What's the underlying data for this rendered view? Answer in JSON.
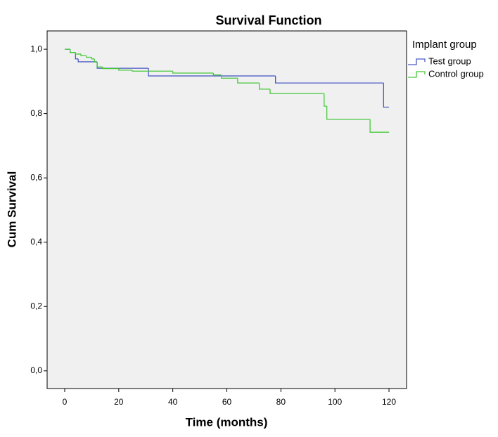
{
  "chart_data": {
    "type": "step",
    "title": "Survival Function",
    "x_label": "Time (months)",
    "y_label": "Cum Survival",
    "legend_title": "Implant group",
    "legend": "right",
    "xlim": [
      -6.5,
      126.5
    ],
    "ylim": [
      -0.055,
      1.057
    ],
    "xticks": [
      0,
      20,
      40,
      60,
      80,
      100,
      120
    ],
    "yticks": [
      {
        "value": 0,
        "label": "0,0"
      },
      {
        "value": 0.2,
        "label": "0,2"
      },
      {
        "value": 0.4,
        "label": "0,4"
      },
      {
        "value": 0.6,
        "label": "0,6"
      },
      {
        "value": 0.8,
        "label": "0,8"
      },
      {
        "value": 1,
        "label": "1,0"
      }
    ],
    "series": [
      {
        "name": "Test group",
        "color": "#4a5bc4",
        "x": [
          0,
          2,
          4,
          5,
          12,
          31,
          78,
          118,
          120
        ],
        "values": [
          1.0,
          0.99,
          0.97,
          0.961,
          0.941,
          0.917,
          0.895,
          0.82,
          0.82
        ]
      },
      {
        "name": "Control group",
        "color": "#47c83b",
        "x": [
          0,
          2,
          4,
          6,
          8,
          10,
          11,
          12,
          14,
          20,
          25,
          40,
          55,
          58,
          64,
          72,
          76,
          96,
          97,
          113,
          120
        ],
        "values": [
          1.0,
          0.99,
          0.985,
          0.98,
          0.975,
          0.97,
          0.96,
          0.945,
          0.94,
          0.935,
          0.932,
          0.926,
          0.92,
          0.91,
          0.895,
          0.876,
          0.862,
          0.823,
          0.782,
          0.742,
          0.742
        ]
      }
    ]
  }
}
